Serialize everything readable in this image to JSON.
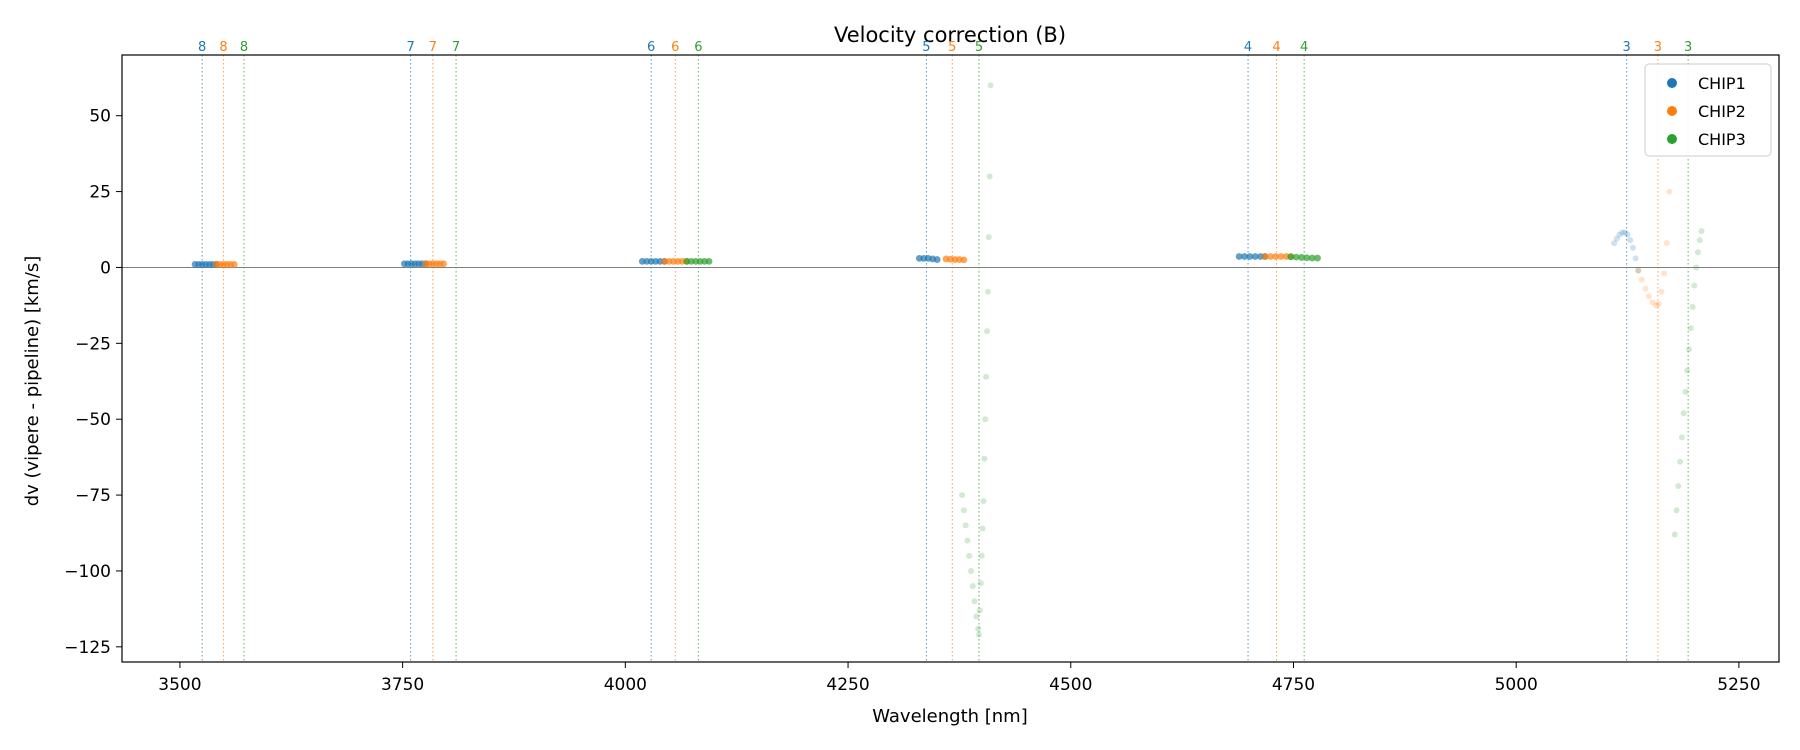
{
  "chart_data": {
    "type": "scatter",
    "title": "Velocity correction (B)",
    "xlabel": "Wavelength [nm]",
    "ylabel": "dv (vipere - pipeline) [km/s]",
    "xlim": [
      3435,
      5295
    ],
    "ylim": [
      -130,
      70
    ],
    "xticks": [
      3500,
      3750,
      4000,
      4250,
      4500,
      4750,
      5000,
      5250
    ],
    "yticks": [
      50,
      25,
      0,
      -25,
      -50,
      -75,
      -100,
      -125
    ],
    "ytick_labels": [
      "50",
      "25",
      "0",
      "−25",
      "−50",
      "−75",
      "−100",
      "−125"
    ],
    "grid": false,
    "zero_line": true,
    "legend": {
      "position": "top-right",
      "entries": [
        "CHIP1",
        "CHIP2",
        "CHIP3"
      ]
    },
    "colors": {
      "CHIP1": "#1f77b4",
      "CHIP2": "#ff7f0e",
      "CHIP3": "#2ca02c",
      "zero_line": "#808080"
    },
    "order_markers": [
      {
        "order": "8",
        "CHIP1": 3525,
        "CHIP2": 3549,
        "CHIP3": 3572
      },
      {
        "order": "7",
        "CHIP1": 3759,
        "CHIP2": 3784,
        "CHIP3": 3810
      },
      {
        "order": "6",
        "CHIP1": 4029,
        "CHIP2": 4056,
        "CHIP3": 4082
      },
      {
        "order": "5",
        "CHIP1": 4338,
        "CHIP2": 4367,
        "CHIP3": 4397
      },
      {
        "order": "4",
        "CHIP1": 4699,
        "CHIP2": 4731,
        "CHIP3": 4762
      },
      {
        "order": "3",
        "CHIP1": 5124,
        "CHIP2": 5159,
        "CHIP3": 5193
      }
    ],
    "series": [
      {
        "name": "CHIP1",
        "segments": [
          {
            "x": [
              3517,
              3521,
              3525,
              3529,
              3533,
              3537,
              3541
            ],
            "y": [
              1,
              1,
              1,
              1,
              1,
              1,
              1
            ]
          },
          {
            "x": [
              3752,
              3756,
              3760,
              3764,
              3768,
              3772,
              3776
            ],
            "y": [
              1.2,
              1.2,
              1.2,
              1.2,
              1.2,
              1.2,
              1.2
            ]
          },
          {
            "x": [
              4019,
              4024,
              4029,
              4034,
              4039,
              4044
            ],
            "y": [
              2,
              2,
              2,
              2,
              2,
              2
            ]
          },
          {
            "x": [
              4330,
              4335,
              4340,
              4345,
              4350
            ],
            "y": [
              3,
              3,
              3,
              2.8,
              2.6
            ]
          },
          {
            "x": [
              4689,
              4695,
              4701,
              4707,
              4713,
              4718
            ],
            "y": [
              3.6,
              3.6,
              3.6,
              3.6,
              3.6,
              3.6
            ]
          },
          {
            "x": [
              5110,
              5113,
              5116,
              5119,
              5122,
              5125,
              5128,
              5131,
              5134,
              5137
            ],
            "y": [
              8,
              9.5,
              10.8,
              11.5,
              11.5,
              10.8,
              9,
              6.5,
              3,
              -1
            ]
          }
        ]
      },
      {
        "name": "CHIP2",
        "segments": [
          {
            "x": [
              3541,
              3545,
              3549,
              3553,
              3557,
              3561
            ],
            "y": [
              1,
              1,
              1,
              1,
              1,
              1
            ]
          },
          {
            "x": [
              3776,
              3780,
              3784,
              3788,
              3792,
              3796
            ],
            "y": [
              1.2,
              1.2,
              1.2,
              1.2,
              1.2,
              1.2
            ]
          },
          {
            "x": [
              4044,
              4049,
              4054,
              4059,
              4064,
              4069
            ],
            "y": [
              2,
              2,
              2,
              2,
              2,
              2
            ]
          },
          {
            "x": [
              4360,
              4365,
              4370,
              4375,
              4380
            ],
            "y": [
              2.8,
              2.7,
              2.6,
              2.6,
              2.5
            ]
          },
          {
            "x": [
              4718,
              4724,
              4730,
              4736,
              4742,
              4747
            ],
            "y": [
              3.6,
              3.6,
              3.6,
              3.6,
              3.6,
              3.6
            ]
          },
          {
            "x": [
              5137,
              5141,
              5145,
              5149,
              5153,
              5157,
              5160,
              5163,
              5166,
              5169,
              5172
            ],
            "y": [
              -1,
              -4,
              -7,
              -9.5,
              -11.5,
              -12.5,
              -12,
              -8,
              -2,
              8,
              25
            ]
          }
        ]
      },
      {
        "name": "CHIP3",
        "segments": [
          {
            "x": [
              4069,
              4074,
              4079,
              4084,
              4089,
              4094
            ],
            "y": [
              2,
              2,
              2,
              2,
              2,
              2
            ]
          },
          {
            "x": [
              4747,
              4753,
              4759,
              4765,
              4771,
              4777
            ],
            "y": [
              3.5,
              3.4,
              3.3,
              3.2,
              3.1,
              3.1
            ]
          },
          {
            "x": [
              4378,
              4380,
              4382,
              4384,
              4386,
              4388,
              4390,
              4392,
              4394,
              4396,
              4397,
              4398,
              4399,
              4400,
              4401,
              4402,
              4403,
              4404,
              4405,
              4406,
              4407,
              4408,
              4409,
              4410
            ],
            "y": [
              -75,
              -80,
              -85,
              -90,
              -95,
              -100,
              -105,
              -110,
              -115,
              -119,
              -121,
              -113,
              -104,
              -95,
              -86,
              -77,
              -63,
              -50,
              -36,
              -21,
              -8,
              10,
              30,
              60
            ]
          },
          {
            "x": [
              5178,
              5180,
              5182,
              5184,
              5186,
              5188,
              5190,
              5192,
              5194,
              5196,
              5198,
              5200,
              5202,
              5204,
              5206,
              5208
            ],
            "y": [
              -88,
              -80,
              -72,
              -64,
              -56,
              -48,
              -41,
              -34,
              -27,
              -20,
              -13,
              -6,
              0,
              5,
              9,
              12
            ]
          }
        ]
      }
    ]
  }
}
